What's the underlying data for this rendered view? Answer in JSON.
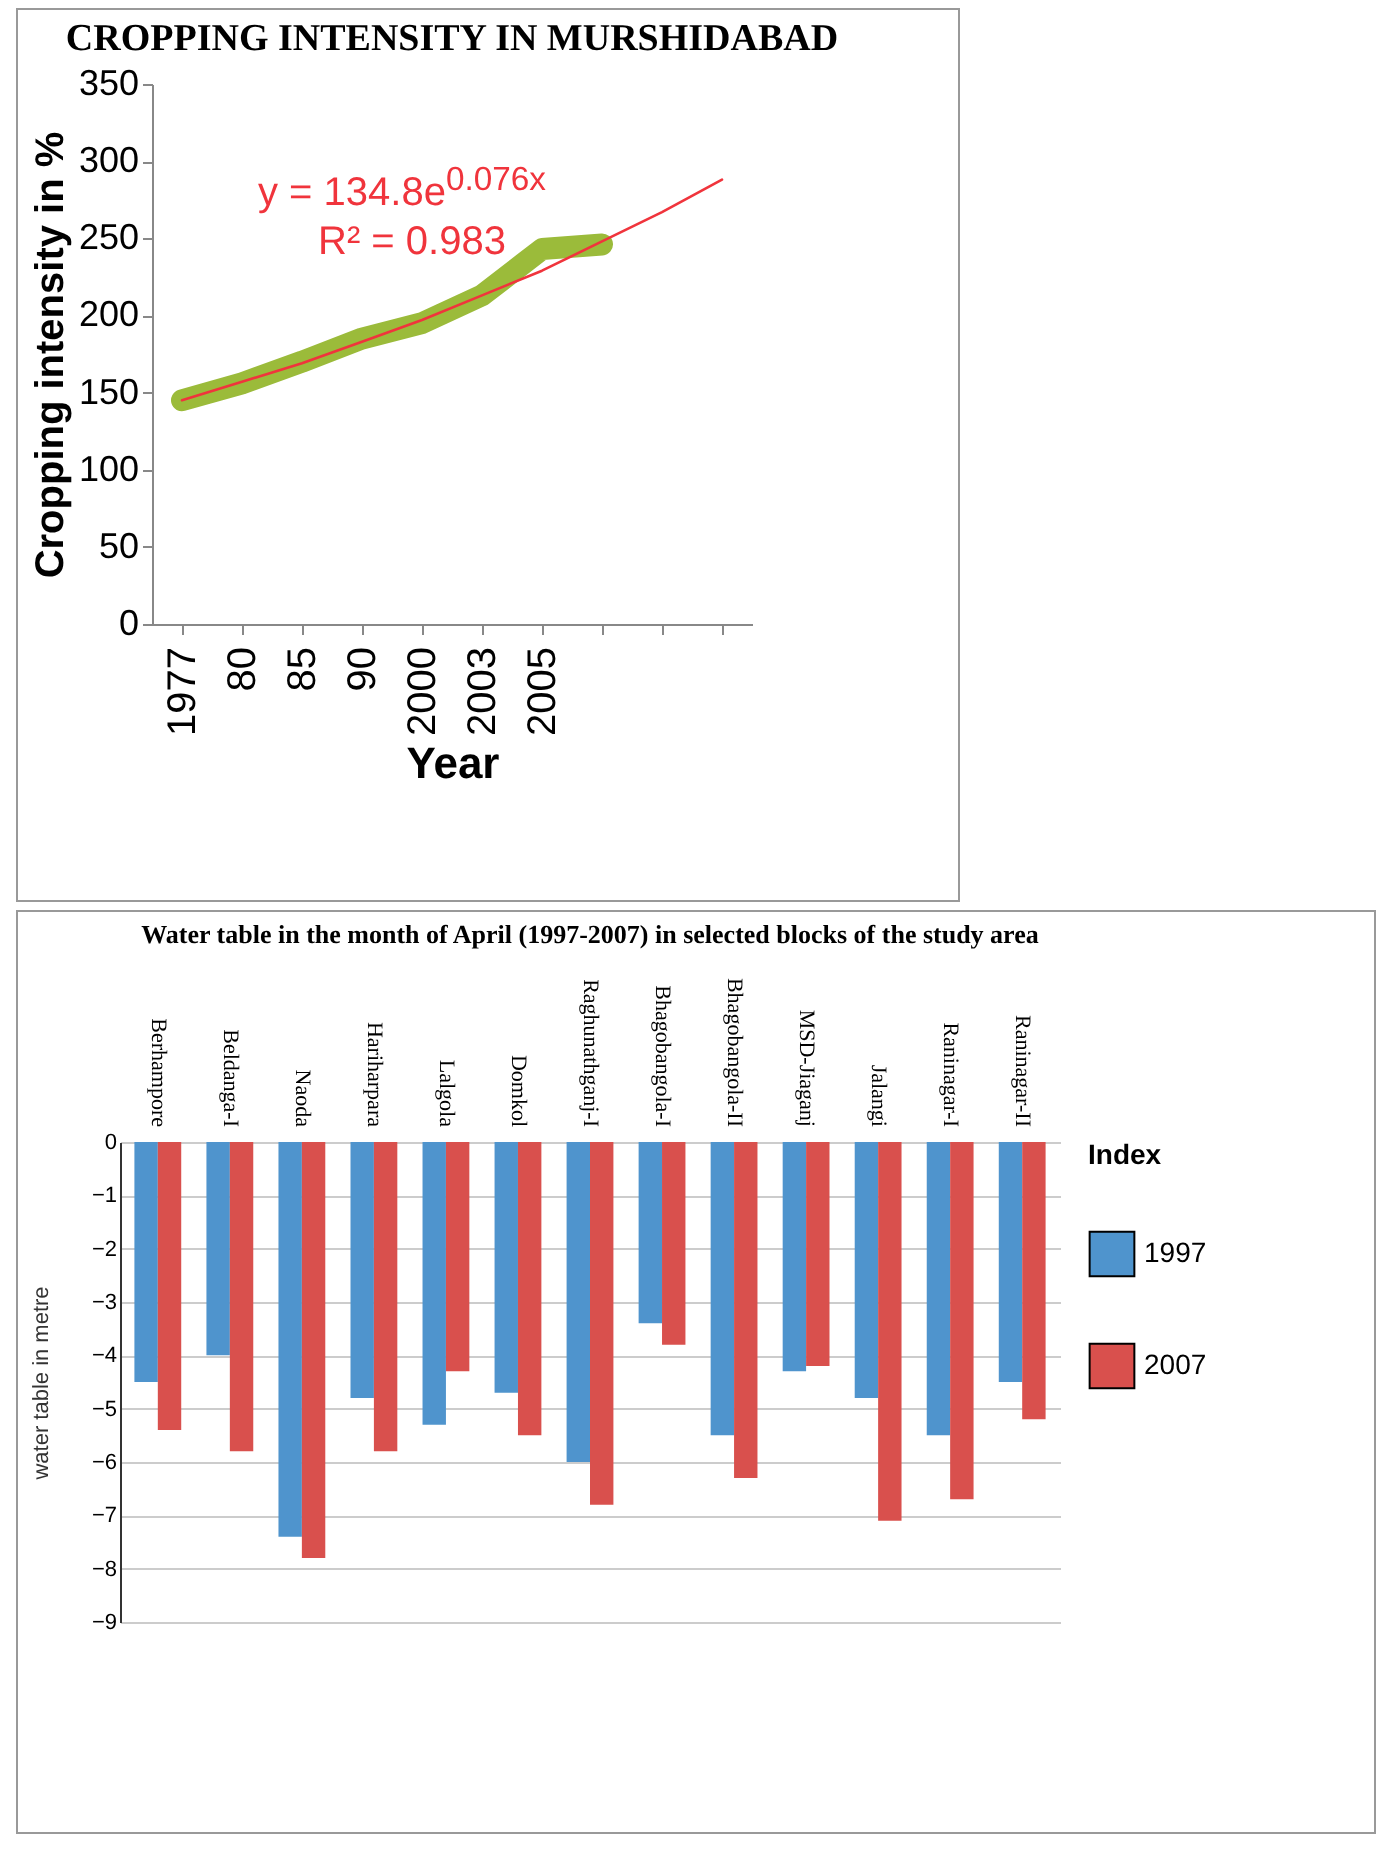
{
  "chart_data": [
    {
      "type": "line",
      "title": "CROPPING INTENSITY IN MURSHIDABAD",
      "xlabel": "Year",
      "ylabel": "Cropping intensity in %",
      "categories": [
        "1977",
        "80",
        "85",
        "90",
        "2000",
        "2003",
        "2005",
        null,
        null,
        null
      ],
      "series": [
        {
          "color": "#9bbb3a",
          "values": [
            145,
            156,
            170,
            185,
            195,
            213,
            243,
            246,
            null,
            null
          ]
        },
        {
          "type": "line",
          "color": "#f0343c",
          "values": [
            145,
            157,
            169,
            183,
            197,
            213,
            229,
            248,
            267,
            288
          ]
        }
      ],
      "ylim": [
        0,
        350
      ],
      "yticks": [
        0,
        50,
        100,
        150,
        200,
        250,
        300,
        350
      ],
      "grid": false,
      "annotations": [
        "y = 134.8e$^{0.076x}$",
        "R² = 0.983"
      ]
    },
    {
      "type": "bar",
      "title": "Water table in the month of April (1997-2007) in selected blocks of the study area",
      "ylabel": "water table in metre",
      "legend_title": "Index",
      "categories": [
        "Berhampore",
        "Beldanga-I",
        "Naoda",
        "Hariharpara",
        "Lalgola",
        "Domkol",
        "Raghunathganj-I",
        "Bhagobangola-I",
        "Bhagobangola-II",
        "MSD-Jiaganj",
        "Jalangi",
        "Raninagar-I",
        "Raninagar-II"
      ],
      "series": [
        {
          "name": "1997",
          "color": "#4f94cd",
          "values": [
            -4.5,
            -4.0,
            -7.4,
            -4.8,
            -5.3,
            -4.7,
            -6.0,
            -3.4,
            -5.5,
            -4.3,
            -4.8,
            -5.5,
            -4.5
          ]
        },
        {
          "name": "2007",
          "color": "#d9504d",
          "values": [
            -5.4,
            -5.8,
            -7.8,
            -5.8,
            -4.3,
            -5.5,
            -6.8,
            -3.8,
            -6.3,
            -4.2,
            -7.1,
            -6.7,
            -5.2
          ]
        }
      ],
      "ylim": [
        -9,
        0
      ],
      "yticks": [
        0,
        -1,
        -2,
        -3,
        -4,
        -5,
        -6,
        -7,
        -8,
        -9
      ],
      "grid": "y",
      "legend": "right"
    }
  ]
}
